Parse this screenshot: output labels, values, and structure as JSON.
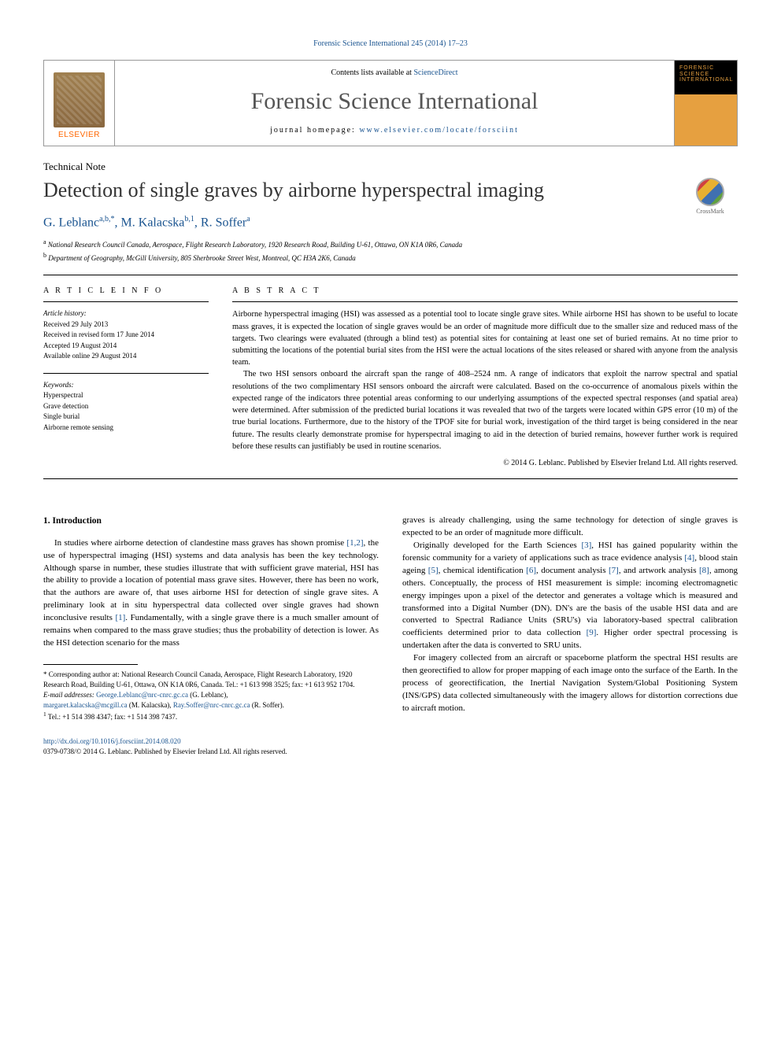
{
  "journal_ref": "Forensic Science International 245 (2014) 17–23",
  "header": {
    "contents_prefix": "Contents lists available at ",
    "contents_link": "ScienceDirect",
    "journal_title": "Forensic Science International",
    "homepage_prefix": "journal homepage: ",
    "homepage_link": "www.elsevier.com/locate/forsciint",
    "elsevier": "ELSEVIER",
    "cover_text": "FORENSIC\nSCIENCE\nINTERNATIONAL"
  },
  "article_type": "Technical Note",
  "paper_title": "Detection of single graves by airborne hyperspectral imaging",
  "crossmark": "CrossMark",
  "authors_html": "G. Leblanc",
  "author_sups1": "a,b,",
  "author_star": "*",
  "author2": ", M. Kalacska",
  "author_sups2": "b,1",
  "author3": ", R. Soffer",
  "author_sups3": "a",
  "affiliations": {
    "a_sup": "a",
    "a": " National Research Council Canada, Aerospace, Flight Research Laboratory, 1920 Research Road, Building U-61, Ottawa, ON K1A 0R6, Canada",
    "b_sup": "b",
    "b": " Department of Geography, McGill University, 805 Sherbrooke Street West, Montreal, QC H3A 2K6, Canada"
  },
  "info": {
    "heading": "A R T I C L E   I N F O",
    "history_label": "Article history:",
    "received": "Received 29 July 2013",
    "revised": "Received in revised form 17 June 2014",
    "accepted": "Accepted 19 August 2014",
    "online": "Available online 29 August 2014",
    "keywords_label": "Keywords:",
    "kw1": "Hyperspectral",
    "kw2": "Grave detection",
    "kw3": "Single burial",
    "kw4": "Airborne remote sensing"
  },
  "abstract": {
    "heading": "A B S T R A C T",
    "p1": "Airborne hyperspectral imaging (HSI) was assessed as a potential tool to locate single grave sites. While airborne HSI has shown to be useful to locate mass graves, it is expected the location of single graves would be an order of magnitude more difficult due to the smaller size and reduced mass of the targets. Two clearings were evaluated (through a blind test) as potential sites for containing at least one set of buried remains. At no time prior to submitting the locations of the potential burial sites from the HSI were the actual locations of the sites released or shared with anyone from the analysis team.",
    "p2": "The two HSI sensors onboard the aircraft span the range of 408–2524 nm. A range of indicators that exploit the narrow spectral and spatial resolutions of the two complimentary HSI sensors onboard the aircraft were calculated. Based on the co-occurrence of anomalous pixels within the expected range of the indicators three potential areas conforming to our underlying assumptions of the expected spectral responses (and spatial area) were determined. After submission of the predicted burial locations it was revealed that two of the targets were located within GPS error (10 m) of the true burial locations. Furthermore, due to the history of the TPOF site for burial work, investigation of the third target is being considered in the near future. The results clearly demonstrate promise for hyperspectral imaging to aid in the detection of buried remains, however further work is required before these results can justifiably be used in routine scenarios.",
    "copyright": "© 2014 G. Leblanc. Published by Elsevier Ireland Ltd. All rights reserved."
  },
  "body": {
    "section1": "1. Introduction",
    "left_p1a": "In studies where airborne detection of clandestine mass graves has shown promise ",
    "left_ref1": "[1,2]",
    "left_p1b": ", the use of hyperspectral imaging (HSI) systems and data analysis has been the key technology. Although sparse in number, these studies illustrate that with sufficient grave material, HSI has the ability to provide a location of potential mass grave sites. However, there has been no work, that the authors are aware of, that uses airborne HSI for detection of single grave sites. A preliminary look at in situ hyperspectral data collected over single graves had shown inconclusive results ",
    "left_ref2": "[1]",
    "left_p1c": ". Fundamentally, with a single grave there is a much smaller amount of remains when compared to the mass grave studies; thus the probability of detection is lower. As the HSI detection scenario for the mass",
    "right_p0": "graves is already challenging, using the same technology for detection of single graves is expected to be an order of magnitude more difficult.",
    "right_p1a": "Originally developed for the Earth Sciences ",
    "right_ref3": "[3]",
    "right_p1b": ", HSI has gained popularity within the forensic community for a variety of applications such as trace evidence analysis ",
    "right_ref4": "[4]",
    "right_p1c": ", blood stain ageing ",
    "right_ref5": "[5]",
    "right_p1d": ", chemical identification ",
    "right_ref6": "[6]",
    "right_p1e": ", document analysis ",
    "right_ref7": "[7]",
    "right_p1f": ", and artwork analysis ",
    "right_ref8": "[8]",
    "right_p1g": ", among others. Conceptually, the process of HSI measurement is simple: incoming electromagnetic energy impinges upon a pixel of the detector and generates a voltage which is measured and transformed into a Digital Number (DN). DN's are the basis of the usable HSI data and are converted to Spectral Radiance Units (SRU's) via laboratory-based spectral calibration coefficients determined prior to data collection ",
    "right_ref9": "[9]",
    "right_p1h": ". Higher order spectral processing is undertaken after the data is converted to SRU units.",
    "right_p2": "For imagery collected from an aircraft or spaceborne platform the spectral HSI results are then georectified to allow for proper mapping of each image onto the surface of the Earth. In the process of georectification, the Inertial Navigation System/Global Positioning System (INS/GPS) data collected simultaneously with the imagery allows for distortion corrections due to aircraft motion."
  },
  "footnotes": {
    "corr": "* Corresponding author at: National Research Council Canada, Aerospace, Flight Research Laboratory, 1920 Research Road, Building U-61, Ottawa, ON K1A 0R6, Canada. Tel.: +1 613 998 3525; fax: +1 613 952 1704.",
    "email_label": "E-mail addresses: ",
    "email1": "George.Leblanc@nrc-cnrc.gc.ca",
    "email1_sfx": " (G. Leblanc),",
    "email2": "margaret.kalacska@mcgill.ca",
    "email2_sfx": " (M. Kalacska), ",
    "email3": "Ray.Soffer@nrc-cnrc.gc.ca",
    "email3_sfx": " (R. Soffer).",
    "n1_sup": "1",
    "n1": " Tel.: +1 514 398 4347; fax: +1 514 398 7437."
  },
  "footer": {
    "doi": "http://dx.doi.org/10.1016/j.forsciint.2014.08.020",
    "issn": "0379-0738/© 2014 G. Leblanc. Published by Elsevier Ireland Ltd. All rights reserved."
  },
  "colors": {
    "link": "#1a5490",
    "elsevier_orange": "#ff6600",
    "text": "#000000",
    "title_gray": "#555555"
  }
}
